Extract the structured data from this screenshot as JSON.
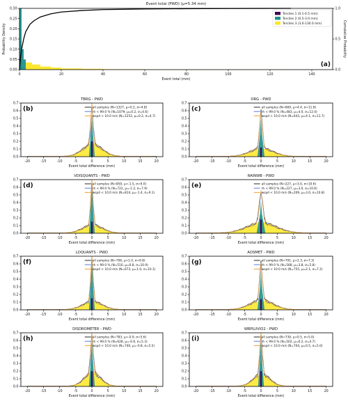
{
  "colors": {
    "tercile1": "#440154",
    "tercile2": "#21918c",
    "tercile3": "#fde725",
    "line_all": "#2a2a2a",
    "line_rh": "#5b7bd5",
    "line_wspd": "#f0a030"
  },
  "chart_data": [
    {
      "panel_label": "(a)",
      "type": "bar",
      "title": "Event total (PWD)",
      "subtitle": "(μ=5.34 mm)",
      "xlabel": "Event total (mm)",
      "ylabel": "Probability Density",
      "y2label": "Cumulative Probability",
      "xlim": [
        0,
        150
      ],
      "ylim": [
        0,
        0.3
      ],
      "y2lim": [
        0,
        1.0
      ],
      "xticks": [
        0,
        20,
        40,
        60,
        80,
        100,
        120,
        140
      ],
      "yticks": [
        0.0,
        0.05,
        0.1,
        0.15,
        0.2,
        0.25,
        0.3
      ],
      "y2ticks": [
        0.0,
        0.5,
        1.0
      ],
      "legend_position": "right",
      "series": [
        {
          "name": "Terciles 1 (0.1-0.5 mm)",
          "color_key": "tercile1",
          "bins": [
            [
              0,
              1,
              0.14
            ]
          ]
        },
        {
          "name": "Terciles 2 (0.5-3.0 mm)",
          "color_key": "tercile2",
          "bins": [
            [
              0,
              1,
              0.3
            ],
            [
              1,
              2,
              0.1
            ],
            [
              2,
              3,
              0.05
            ]
          ]
        },
        {
          "name": "Terciles 3 (3.0-130.0 mm)",
          "color_key": "tercile3",
          "bins": [
            [
              3,
              6,
              0.035
            ],
            [
              6,
              10,
              0.025
            ],
            [
              10,
              15,
              0.015
            ],
            [
              15,
              20,
              0.01
            ],
            [
              20,
              30,
              0.006
            ],
            [
              30,
              40,
              0.004
            ],
            [
              40,
              60,
              0.002
            ],
            [
              60,
              90,
              0.001
            ],
            [
              90,
              130,
              0.0005
            ]
          ]
        }
      ],
      "cdf": {
        "x": [
          0,
          0.5,
          1,
          2,
          3,
          5,
          7,
          10,
          15,
          20,
          30,
          40,
          60,
          80,
          100,
          130
        ],
        "y": [
          0.0,
          0.2,
          0.33,
          0.5,
          0.62,
          0.74,
          0.8,
          0.86,
          0.91,
          0.94,
          0.965,
          0.98,
          0.99,
          0.995,
          0.998,
          1.0
        ]
      }
    },
    {
      "panel_label": "(b)",
      "type": "area",
      "title": "TBRG - PWD",
      "xlabel": "Event total difference (mm)",
      "xlim": [
        -22,
        22
      ],
      "ylim": [
        0,
        0.7
      ],
      "xticks": [
        -20,
        -15,
        -10,
        -5,
        0,
        5,
        10,
        15,
        20
      ],
      "yticks": [
        0.0,
        0.1,
        0.2,
        0.3,
        0.4,
        0.5,
        0.6,
        0.7
      ],
      "legend": [
        "all samples (N=1327, μ=0.2, σ=4.8)",
        "rh < 99.0 % (N=1079, μ=0.2, σ=4.6)",
        "wspd < 10.0 m/s (N=1252, μ=0.2, σ=4.7)"
      ],
      "legend_position": "upper right",
      "peaks": {
        "t1": 0.2,
        "t2": 0.55,
        "t3": 0.18,
        "w3": 3.0,
        "spread": 1.0
      }
    },
    {
      "panel_label": "(c)",
      "type": "area",
      "title": "ORG - PWD",
      "xlabel": "Event total difference (mm)",
      "xlim": [
        -22,
        22
      ],
      "ylim": [
        0,
        0.7
      ],
      "xticks": [
        -20,
        -15,
        -10,
        -5,
        0,
        5,
        10,
        15,
        20
      ],
      "yticks": [
        0.0,
        0.1,
        0.2,
        0.3,
        0.4,
        0.5,
        0.6,
        0.7
      ],
      "legend": [
        "all samples (N=669, μ=4.4, σ=11.8)",
        "rh < 99.0 % (N=483, μ=4.0, σ=12.4)",
        "wspd < 10.0 m/s (N=643, μ=4.1, σ=11.7)"
      ],
      "legend_position": "upper right",
      "peaks": {
        "t1": 0.12,
        "t2": 0.5,
        "t3": 0.12,
        "w3": 3.5,
        "spread": 1.2
      }
    },
    {
      "panel_label": "(d)",
      "type": "area",
      "title": "VDISQUANTS - PWD",
      "xlabel": "Event total difference (mm)",
      "xlim": [
        -22,
        22
      ],
      "ylim": [
        0,
        0.7
      ],
      "xticks": [
        -20,
        -15,
        -10,
        -5,
        0,
        5,
        10,
        15,
        20
      ],
      "yticks": [
        0.0,
        0.1,
        0.2,
        0.3,
        0.4,
        0.5,
        0.6,
        0.7
      ],
      "legend": [
        "all samples (N=859, μ=-1.5, σ=9.0)",
        "rh < 99.0 % (N=722, μ=-1.2, σ=7.9)",
        "wspd < 10.0 m/s (N=814, μ=-1.4, σ=9.1)"
      ],
      "legend_position": "upper right",
      "peaks": {
        "t1": 0.15,
        "t2": 0.6,
        "t3": 0.12,
        "w3": 3.0,
        "spread": 1.0
      }
    },
    {
      "panel_label": "(e)",
      "type": "area",
      "title": "RAINWB - PWD",
      "xlabel": "Event total difference (mm)",
      "xlim": [
        -22,
        22
      ],
      "ylim": [
        0,
        0.7
      ],
      "xticks": [
        -20,
        -15,
        -10,
        -5,
        0,
        5,
        10,
        15,
        20
      ],
      "yticks": [
        0.0,
        0.1,
        0.2,
        0.3,
        0.4,
        0.5,
        0.6,
        0.7
      ],
      "legend": [
        "all samples (N=227, μ=3.0, σ=10.6)",
        "rh < 99.0 % (N=227, μ=3.0, σ=10.6)",
        "wspd < 10.0 m/s (N=209, μ=3.0, σ=10.8)"
      ],
      "legend_position": "upper right",
      "peaks": {
        "t1": 0.18,
        "t2": 0.42,
        "t3": 0.15,
        "w3": 4.5,
        "spread": 1.5
      }
    },
    {
      "panel_label": "(f)",
      "type": "area",
      "title": "LDQUANTS - PWD",
      "xlabel": "Event total difference (mm)",
      "xlim": [
        -22,
        22
      ],
      "ylim": [
        0,
        0.7
      ],
      "xticks": [
        -20,
        -15,
        -10,
        -5,
        0,
        5,
        10,
        15,
        20
      ],
      "yticks": [
        0.0,
        0.1,
        0.2,
        0.3,
        0.4,
        0.5,
        0.6,
        0.7
      ],
      "legend": [
        "all samples (N=706, μ=1.0, σ=9.8)",
        "rh < 99.0 % (N=510, μ=0.8, σ=10.9)",
        "wspd < 10.0 m/s (N=673, μ=1.0, σ=10.1)"
      ],
      "legend_position": "upper right",
      "peaks": {
        "t1": 0.15,
        "t2": 0.62,
        "t3": 0.12,
        "w3": 3.0,
        "spread": 1.0
      }
    },
    {
      "panel_label": "(g)",
      "type": "area",
      "title": "AOSMET - PWD",
      "xlabel": "Event total difference (mm)",
      "xlim": [
        -22,
        22
      ],
      "ylim": [
        0,
        0.7
      ],
      "xticks": [
        -20,
        -15,
        -10,
        -5,
        0,
        5,
        10,
        15,
        20
      ],
      "yticks": [
        0.0,
        0.1,
        0.2,
        0.3,
        0.4,
        0.5,
        0.6,
        0.7
      ],
      "legend": [
        "all samples (N=791, μ=2.3, σ=7.3)",
        "rh < 99.0 % (N=568, μ=3.8, σ=5.8)",
        "wspd < 10.0 m/s (N=755, μ=2.1, σ=7.2)"
      ],
      "legend_position": "upper right",
      "peaks": {
        "t1": 0.14,
        "t2": 0.5,
        "t3": 0.14,
        "w3": 3.5,
        "spread": 1.2
      }
    },
    {
      "panel_label": "(h)",
      "type": "area",
      "title": "DISDROMETER - PWD",
      "xlabel": "Event total difference (mm)",
      "xlim": [
        -22,
        22
      ],
      "ylim": [
        0,
        0.7
      ],
      "xticks": [
        -20,
        -15,
        -10,
        -5,
        0,
        5,
        10,
        15,
        20
      ],
      "yticks": [
        0.0,
        0.1,
        0.2,
        0.3,
        0.4,
        0.5,
        0.6,
        0.7
      ],
      "legend": [
        "all samples (N=783, μ=-0.9, σ=5.6)",
        "rh < 99.0 % (N=628, μ=-0.6, σ=5.3)",
        "wspd < 10.0 m/s (N=740, μ=-0.8, σ=5.5)"
      ],
      "legend_position": "upper right",
      "peaks": {
        "t1": 0.2,
        "t2": 0.6,
        "t3": 0.2,
        "w3": 2.5,
        "spread": 1.0
      }
    },
    {
      "panel_label": "(i)",
      "type": "area",
      "title": "WBPLUVIO2 - PWD",
      "xlabel": "Event total difference (mm)",
      "xlim": [
        -22,
        22
      ],
      "ylim": [
        0,
        0.7
      ],
      "xticks": [
        -20,
        -15,
        -10,
        -5,
        0,
        5,
        10,
        15,
        20
      ],
      "yticks": [
        0.0,
        0.1,
        0.2,
        0.3,
        0.4,
        0.5,
        0.6,
        0.7
      ],
      "legend": [
        "all samples (N=739, μ=0.5, σ=5.0)",
        "rh < 99.0 % (N=502, μ=0.2, σ=4.7)",
        "wspd < 10.0 m/s (N=704, μ=0.5, σ=5.0)"
      ],
      "legend_position": "upper right",
      "peaks": {
        "t1": 0.2,
        "t2": 0.6,
        "t3": 0.18,
        "w3": 2.5,
        "spread": 1.0
      }
    }
  ]
}
